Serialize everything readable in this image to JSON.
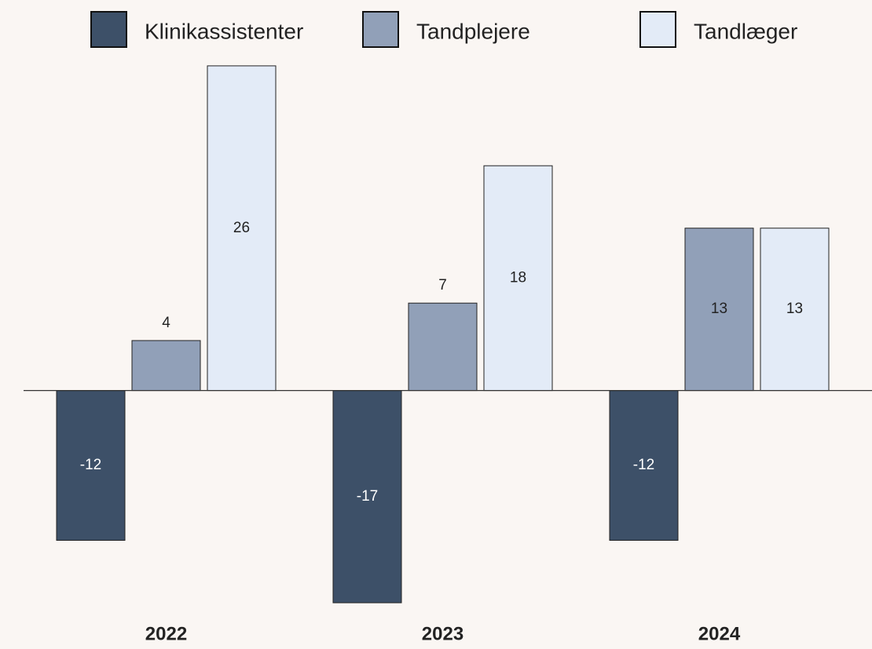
{
  "chart_data": {
    "type": "bar",
    "categories": [
      "2022",
      "2023",
      "2024"
    ],
    "series": [
      {
        "name": "Klinikassistenter",
        "color": "#3d5068",
        "values": [
          -12,
          -17,
          -12
        ]
      },
      {
        "name": "Tandplejere",
        "color": "#91a0b8",
        "values": [
          4,
          7,
          13
        ]
      },
      {
        "name": "Tandlæger",
        "color": "#e3ebf7",
        "values": [
          26,
          18,
          13
        ]
      }
    ],
    "ylim": [
      -18,
      27
    ],
    "grid": false,
    "legend": "top"
  }
}
